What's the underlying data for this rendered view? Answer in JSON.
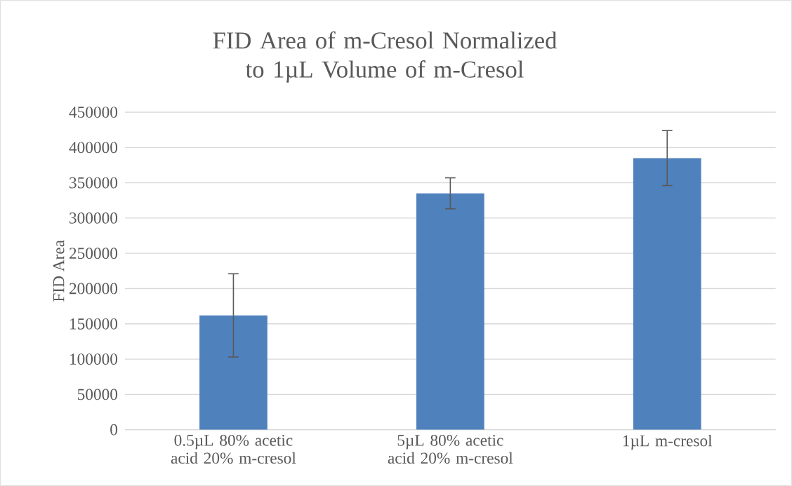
{
  "chart_data": {
    "type": "bar",
    "title": "FID Area of m-Cresol Normalized to 1µL Volume of m-Cresol",
    "ylabel": "FID Area",
    "categories": [
      "0.5µL 80% acetic acid 20% m-cresol",
      "5µL 80% acetic acid 20% m-cresol",
      "1µL m-cresol"
    ],
    "values": [
      162000,
      335000,
      385000
    ],
    "errors": [
      59000,
      22000,
      39000
    ],
    "color": "#4f81bd",
    "ylim": [
      0,
      450000
    ],
    "yticks": [
      0,
      50000,
      100000,
      150000,
      200000,
      250000,
      300000,
      350000,
      400000,
      450000
    ],
    "grid": "y"
  }
}
